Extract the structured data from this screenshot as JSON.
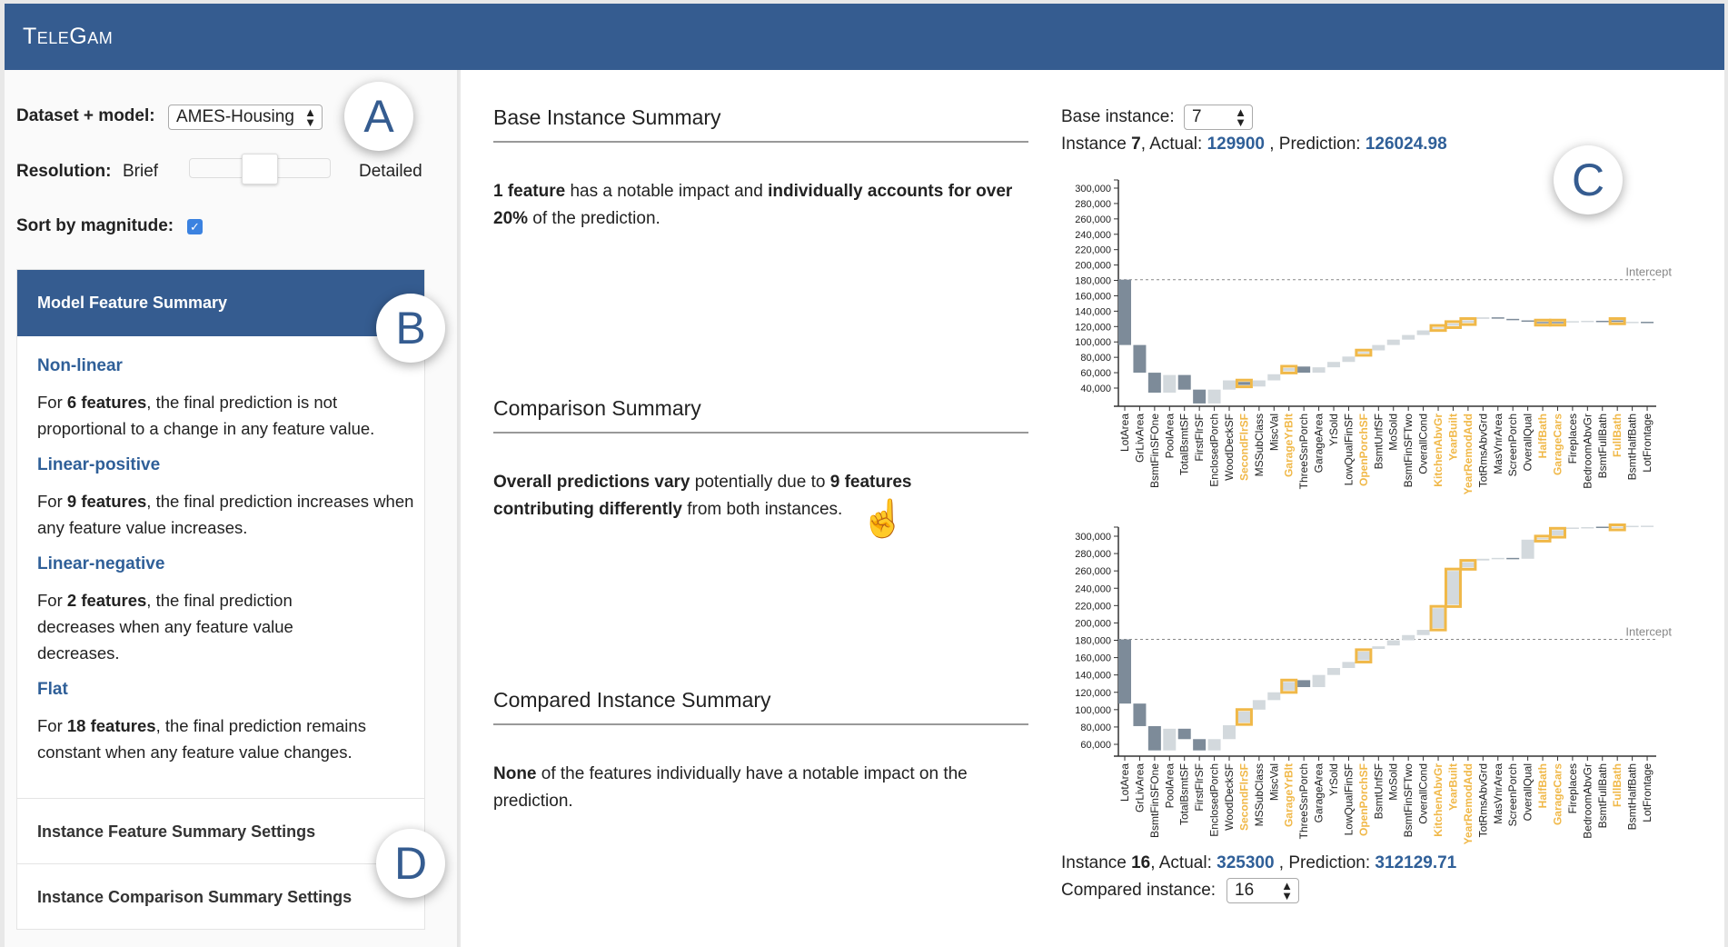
{
  "app": {
    "title": "TeleGam"
  },
  "controls": {
    "dataset_label": "Dataset + model:",
    "dataset_value": "AMES-Housing",
    "resolution_label": "Resolution:",
    "resolution_min": "Brief",
    "resolution_max": "Detailed",
    "resolution_level": 0.5,
    "sort_label": "Sort by magnitude:",
    "sort_checked": true
  },
  "annotations": {
    "a": "A",
    "b": "B",
    "c": "C",
    "d": "D"
  },
  "model_summary": {
    "title": "Model Feature Summary",
    "groups": [
      {
        "name": "Non-linear",
        "pre": "For ",
        "count": "6 features",
        "post": ", the final prediction is not proportional to a change in any feature value."
      },
      {
        "name": "Linear-positive",
        "pre": "For ",
        "count": "9 features",
        "post": ", the final prediction increases when any feature value increases."
      },
      {
        "name": "Linear-negative",
        "pre": "For ",
        "count": "2 features",
        "post": ", the final prediction decreases when any feature value decreases."
      },
      {
        "name": "Flat",
        "pre": "For ",
        "count": "18 features",
        "post": ", the final prediction remains constant when any feature value changes."
      }
    ],
    "settings": [
      "Instance Feature Summary Settings",
      "Instance Comparison Summary Settings"
    ]
  },
  "summaries": {
    "base_title": "Base Instance Summary",
    "base_b1": "1 feature",
    "base_t1": " has a notable impact and ",
    "base_b2": "individually accounts for over 20%",
    "base_t2": " of the prediction.",
    "comp_title": "Comparison Summary",
    "comp_b1": "Overall predictions vary",
    "comp_t1": " potentially due to ",
    "comp_b2": "9 features contributing differently",
    "comp_t2": " from both instances.",
    "compared_title": "Compared Instance Summary",
    "compared_b1": "None",
    "compared_t1": " of the features individually have a notable impact on the prediction."
  },
  "base": {
    "select_label": "Base instance:",
    "select_value": "7",
    "instance_word": "Instance ",
    "instance_id": "7",
    "actual_label": ", Actual: ",
    "actual": "129900",
    "prediction_label": " , Prediction: ",
    "prediction": "126024.98"
  },
  "compared": {
    "select_label": "Compared instance:",
    "select_value": "16",
    "instance_word": "Instance ",
    "instance_id": "16",
    "actual_label": ", Actual: ",
    "actual": "325300",
    "prediction_label": " , Prediction: ",
    "prediction": "312129.71"
  },
  "colors": {
    "negative": "#7d8b99",
    "positive": "#d3d9dd",
    "highlight": "#f0b848",
    "accent": "#355c90"
  },
  "chart_data": [
    {
      "type": "waterfall",
      "intercept": 181000,
      "intercept_label": "Intercept",
      "yticks": [
        40000,
        60000,
        80000,
        100000,
        120000,
        140000,
        160000,
        180000,
        200000,
        220000,
        240000,
        260000,
        280000,
        300000
      ],
      "categories": [
        "LotArea",
        "GrLivArea",
        "BsmtFinSFOne",
        "PoolArea",
        "TotalBsmtSF",
        "FirstFlrSF",
        "EnclosedPorch",
        "WoodDeckSF",
        "SecondFlrSF",
        "MSSubClass",
        "MiscVal",
        "GarageYrBlt",
        "ThreeSsnPorch",
        "GarageArea",
        "YrSold",
        "LowQualFinSF",
        "OpenPorchSF",
        "BsmtUnfSF",
        "MoSold",
        "BsmtFinSFTwo",
        "OverallCond",
        "KitchenAbvGr",
        "YearBuilt",
        "YearRemodAdd",
        "TotRmsAbvGrd",
        "MasVnrArea",
        "ScreenPorch",
        "OverallQual",
        "HalfBath",
        "GarageCars",
        "Fireplaces",
        "BedroomAbvGr",
        "BsmtFullBath",
        "FullBath",
        "BsmtHalfBath",
        "LotFrontage"
      ],
      "bars": [
        [
          181000,
          96000
        ],
        [
          96000,
          60000
        ],
        [
          60000,
          34000
        ],
        [
          34000,
          57000
        ],
        [
          57000,
          38000
        ],
        [
          38000,
          20000
        ],
        [
          20000,
          38000
        ],
        [
          38000,
          50000
        ],
        [
          48000,
          44000
        ],
        [
          42000,
          50000
        ],
        [
          50000,
          58000
        ],
        [
          62000,
          66000
        ],
        [
          68000,
          60000
        ],
        [
          60000,
          67000
        ],
        [
          67000,
          74000
        ],
        [
          74000,
          81000
        ],
        [
          85000,
          87000
        ],
        [
          89000,
          96000
        ],
        [
          96000,
          103000
        ],
        [
          103000,
          109000
        ],
        [
          109000,
          115000
        ],
        [
          118000,
          119000
        ],
        [
          121000,
          124000
        ],
        [
          125000,
          128000
        ],
        [
          130000,
          132000
        ],
        [
          132000,
          130500
        ],
        [
          130000,
          128500
        ],
        [
          128000,
          126500
        ],
        [
          126000,
          124500
        ],
        [
          126000,
          124500
        ],
        [
          126000,
          127000
        ],
        [
          127000,
          127500
        ],
        [
          127500,
          126500
        ],
        [
          128000,
          126000
        ],
        [
          126000,
          126200
        ],
        [
          126200,
          126025
        ]
      ],
      "highlighted": [
        "SecondFlrSF",
        "GarageYrBlt",
        "OpenPorchSF",
        "KitchenAbvGr",
        "YearBuilt",
        "YearRemodAdd",
        "HalfBath",
        "GarageCars",
        "FullBath"
      ]
    },
    {
      "type": "waterfall",
      "intercept": 181000,
      "intercept_label": "Intercept",
      "yticks": [
        60000,
        80000,
        100000,
        120000,
        140000,
        160000,
        180000,
        200000,
        220000,
        240000,
        260000,
        280000,
        300000
      ],
      "categories": [
        "LotArea",
        "GrLivArea",
        "BsmtFinSFOne",
        "PoolArea",
        "TotalBsmtSF",
        "FirstFlrSF",
        "EnclosedPorch",
        "WoodDeckSF",
        "SecondFlrSF",
        "MSSubClass",
        "MiscVal",
        "GarageYrBlt",
        "ThreeSsnPorch",
        "GarageArea",
        "YrSold",
        "LowQualFinSF",
        "OpenPorchSF",
        "BsmtUnfSF",
        "MoSold",
        "BsmtFinSFTwo",
        "OverallCond",
        "KitchenAbvGr",
        "YearBuilt",
        "YearRemodAdd",
        "TotRmsAbvGrd",
        "MasVnrArea",
        "ScreenPorch",
        "OverallQual",
        "HalfBath",
        "GarageCars",
        "Fireplaces",
        "BedroomAbvGr",
        "BsmtFullBath",
        "FullBath",
        "BsmtHalfBath",
        "LotFrontage"
      ],
      "bars": [
        [
          181000,
          107000
        ],
        [
          107000,
          81000
        ],
        [
          81000,
          53000
        ],
        [
          53000,
          78000
        ],
        [
          78000,
          66000
        ],
        [
          66000,
          53000
        ],
        [
          53000,
          66000
        ],
        [
          66000,
          82000
        ],
        [
          85000,
          98000
        ],
        [
          100000,
          111000
        ],
        [
          111000,
          120000
        ],
        [
          122000,
          132000
        ],
        [
          134000,
          126000
        ],
        [
          126000,
          140000
        ],
        [
          140000,
          148000
        ],
        [
          148000,
          155000
        ],
        [
          157000,
          167000
        ],
        [
          170000,
          173000
        ],
        [
          174000,
          180000
        ],
        [
          180000,
          186000
        ],
        [
          186000,
          192000
        ],
        [
          194000,
          217000
        ],
        [
          221000,
          260000
        ],
        [
          264000,
          270000
        ],
        [
          272000,
          274000
        ],
        [
          274000,
          275000
        ],
        [
          275000,
          274000
        ],
        [
          274000,
          296000
        ],
        [
          297000,
          298000
        ],
        [
          301000,
          307000
        ],
        [
          309000,
          310000
        ],
        [
          310000,
          310500
        ],
        [
          311000,
          310000
        ],
        [
          310500,
          311000
        ],
        [
          311500,
          312000
        ],
        [
          312000,
          312130
        ]
      ],
      "highlighted": [
        "SecondFlrSF",
        "GarageYrBlt",
        "OpenPorchSF",
        "KitchenAbvGr",
        "YearBuilt",
        "YearRemodAdd",
        "HalfBath",
        "GarageCars",
        "FullBath"
      ]
    }
  ]
}
